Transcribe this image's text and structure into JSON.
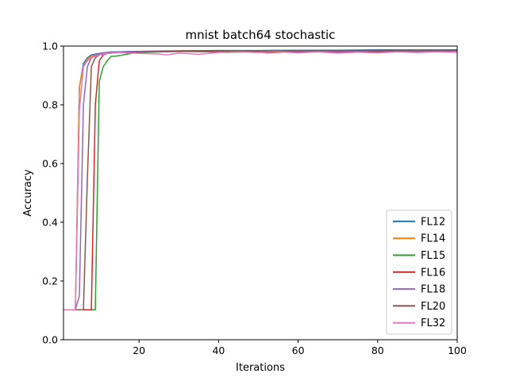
{
  "chart_data": {
    "type": "line",
    "title": "mnist batch64 stochastic",
    "xlabel": "Iterations",
    "ylabel": "Accuracy",
    "xlim": [
      1,
      100
    ],
    "ylim": [
      0.0,
      1.0
    ],
    "xticks": [
      20,
      40,
      60,
      80,
      100
    ],
    "yticks": [
      0.0,
      0.2,
      0.4,
      0.6,
      0.8,
      1.0
    ],
    "xtick_labels": [
      "20",
      "40",
      "60",
      "80",
      "100"
    ],
    "ytick_labels": [
      "0.0",
      "0.2",
      "0.4",
      "0.6",
      "0.8",
      "1.0"
    ],
    "grid": false,
    "legend_position": "bottom-right",
    "series": [
      {
        "name": "FL12",
        "color": "#1f77b4",
        "x": [
          1,
          4,
          5,
          6,
          7,
          8,
          10,
          13,
          20,
          30,
          40,
          50,
          60,
          70,
          80,
          90,
          100
        ],
        "y": [
          0.102,
          0.102,
          0.86,
          0.94,
          0.96,
          0.97,
          0.975,
          0.98,
          0.982,
          0.984,
          0.985,
          0.985,
          0.986,
          0.986,
          0.987,
          0.987,
          0.987
        ]
      },
      {
        "name": "FL14",
        "color": "#ff7f0e",
        "x": [
          1,
          4,
          5,
          6,
          7,
          8,
          10,
          13,
          20,
          30,
          40,
          50,
          60,
          70,
          80,
          90,
          100
        ],
        "y": [
          0.102,
          0.102,
          0.86,
          0.93,
          0.955,
          0.965,
          0.972,
          0.978,
          0.981,
          0.982,
          0.983,
          0.984,
          0.985,
          0.985,
          0.985,
          0.986,
          0.986
        ]
      },
      {
        "name": "FL15",
        "color": "#2ca02c",
        "x": [
          1,
          9,
          10,
          11,
          12,
          13,
          14,
          16,
          18,
          20,
          25,
          30,
          40,
          42,
          50,
          60,
          70,
          80,
          90,
          100
        ],
        "y": [
          0.102,
          0.102,
          0.88,
          0.93,
          0.95,
          0.965,
          0.965,
          0.97,
          0.975,
          0.978,
          0.98,
          0.982,
          0.98,
          0.978,
          0.981,
          0.983,
          0.982,
          0.983,
          0.984,
          0.984
        ]
      },
      {
        "name": "FL16",
        "color": "#d62728",
        "x": [
          1,
          8,
          9,
          10,
          11,
          12,
          14,
          20,
          30,
          40,
          50,
          52,
          60,
          70,
          75,
          80,
          90,
          100
        ],
        "y": [
          0.102,
          0.102,
          0.8,
          0.95,
          0.97,
          0.975,
          0.978,
          0.98,
          0.982,
          0.981,
          0.98,
          0.977,
          0.981,
          0.979,
          0.981,
          0.98,
          0.982,
          0.983
        ]
      },
      {
        "name": "FL18",
        "color": "#9467bd",
        "x": [
          1,
          4,
          5,
          6,
          7,
          8,
          10,
          12,
          15,
          20,
          30,
          40,
          50,
          60,
          70,
          80,
          90,
          100
        ],
        "y": [
          0.102,
          0.102,
          0.15,
          0.8,
          0.93,
          0.96,
          0.975,
          0.978,
          0.98,
          0.982,
          0.983,
          0.982,
          0.984,
          0.983,
          0.982,
          0.984,
          0.983,
          0.984
        ]
      },
      {
        "name": "FL20",
        "color": "#8c564b",
        "x": [
          1,
          6,
          7,
          8,
          9,
          10,
          12,
          15,
          20,
          30,
          40,
          50,
          60,
          70,
          80,
          90,
          100
        ],
        "y": [
          0.102,
          0.102,
          0.55,
          0.93,
          0.96,
          0.97,
          0.975,
          0.978,
          0.98,
          0.982,
          0.983,
          0.984,
          0.984,
          0.985,
          0.985,
          0.985,
          0.986
        ]
      },
      {
        "name": "FL32",
        "color": "#e377c2",
        "x": [
          1,
          4,
          5,
          6,
          7,
          8,
          10,
          12,
          15,
          20,
          25,
          27,
          30,
          35,
          40,
          45,
          50,
          55,
          60,
          65,
          70,
          75,
          80,
          85,
          90,
          95,
          100
        ],
        "y": [
          0.102,
          0.102,
          0.78,
          0.93,
          0.95,
          0.96,
          0.97,
          0.975,
          0.978,
          0.975,
          0.973,
          0.97,
          0.976,
          0.972,
          0.978,
          0.98,
          0.978,
          0.98,
          0.977,
          0.98,
          0.976,
          0.979,
          0.977,
          0.98,
          0.978,
          0.98,
          0.978
        ]
      }
    ]
  }
}
